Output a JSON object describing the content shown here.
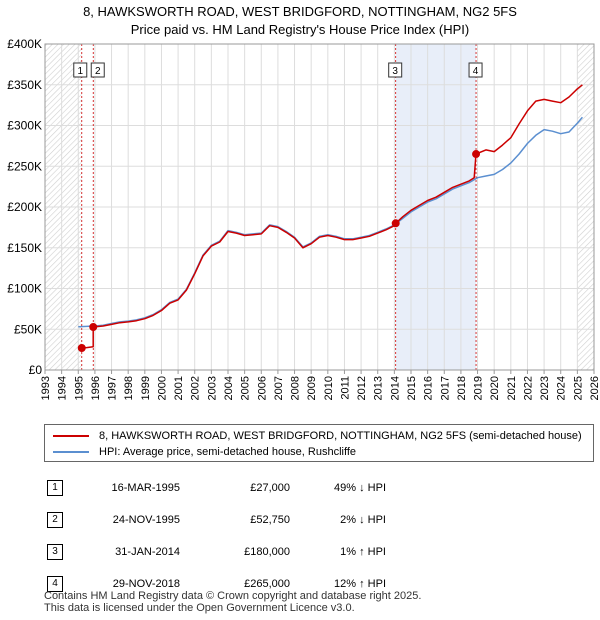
{
  "header": {
    "title_line1": "8, HAWKSWORTH ROAD, WEST BRIDGFORD, NOTTINGHAM, NG2 5FS",
    "title_line2": "Price paid vs. HM Land Registry's House Price Index (HPI)"
  },
  "chart_data": {
    "type": "line",
    "title": "8, HAWKSWORTH ROAD, WEST BRIDGFORD, NOTTINGHAM, NG2 5FS",
    "subtitle": "Price paid vs. HM Land Registry's House Price Index (HPI)",
    "xlabel": "",
    "ylabel": "",
    "xlim": [
      1993,
      2026
    ],
    "ylim": [
      0,
      400000
    ],
    "y_ticks": [
      {
        "value": 0,
        "label": "£0"
      },
      {
        "value": 50000,
        "label": "£50K"
      },
      {
        "value": 100000,
        "label": "£100K"
      },
      {
        "value": 150000,
        "label": "£150K"
      },
      {
        "value": 200000,
        "label": "£200K"
      },
      {
        "value": 250000,
        "label": "£250K"
      },
      {
        "value": 300000,
        "label": "£300K"
      },
      {
        "value": 350000,
        "label": "£350K"
      },
      {
        "value": 400000,
        "label": "£400K"
      }
    ],
    "x_ticks": [
      "1993",
      "1994",
      "1995",
      "1996",
      "1997",
      "1998",
      "1999",
      "2000",
      "2001",
      "2002",
      "2003",
      "2004",
      "2005",
      "2006",
      "2007",
      "2008",
      "2009",
      "2010",
      "2011",
      "2012",
      "2013",
      "2014",
      "2015",
      "2016",
      "2017",
      "2018",
      "2019",
      "2020",
      "2021",
      "2022",
      "2023",
      "2024",
      "2025",
      "2026"
    ],
    "grid": true,
    "hatched_regions": [
      [
        1993,
        1995.2
      ],
      [
        2025.0,
        2026
      ]
    ],
    "shaded_region": [
      2014.08,
      2018.91
    ],
    "series": [
      {
        "name": "8, HAWKSWORTH ROAD, WEST BRIDGFORD, NOTTINGHAM, NG2 5FS (semi-detached house)",
        "color": "#cc0000",
        "x": [
          1995.21,
          1995.5,
          1995.9,
          1995.9,
          1996.5,
          1997.0,
          1997.5,
          1998.0,
          1998.5,
          1999.0,
          1999.5,
          2000.0,
          2000.5,
          2001.0,
          2001.5,
          2002.0,
          2002.5,
          2003.0,
          2003.5,
          2004.0,
          2004.5,
          2005.0,
          2005.5,
          2006.0,
          2006.5,
          2007.0,
          2007.5,
          2008.0,
          2008.5,
          2009.0,
          2009.5,
          2010.0,
          2010.5,
          2011.0,
          2011.5,
          2012.0,
          2012.5,
          2013.0,
          2013.5,
          2014.0,
          2014.08,
          2014.5,
          2015.0,
          2015.5,
          2016.0,
          2016.5,
          2017.0,
          2017.5,
          2018.0,
          2018.5,
          2018.8,
          2018.91,
          2019.5,
          2020.0,
          2020.5,
          2021.0,
          2021.5,
          2022.0,
          2022.5,
          2023.0,
          2023.5,
          2024.0,
          2024.5,
          2025.0,
          2025.3
        ],
        "values": [
          27000,
          27500,
          28500,
          52750,
          54000,
          56000,
          58000,
          59000,
          60500,
          63000,
          67000,
          73000,
          82000,
          86000,
          98000,
          118000,
          140000,
          152000,
          157000,
          170000,
          168000,
          165000,
          166000,
          167000,
          177000,
          175000,
          169000,
          162000,
          150000,
          155000,
          163000,
          165000,
          163000,
          160000,
          160000,
          162000,
          164000,
          168000,
          172000,
          177000,
          180000,
          188000,
          196000,
          202000,
          208000,
          212000,
          218000,
          224000,
          228000,
          232000,
          236000,
          265000,
          270000,
          268000,
          276000,
          285000,
          302000,
          318000,
          330000,
          332000,
          330000,
          328000,
          335000,
          345000,
          350000
        ]
      },
      {
        "name": "HPI: Average price, semi-detached house, Rushcliffe",
        "color": "#5b8fd0",
        "x": [
          1995.0,
          1995.5,
          1996.0,
          1996.5,
          1997.0,
          1997.5,
          1998.0,
          1998.5,
          1999.0,
          1999.5,
          2000.0,
          2000.5,
          2001.0,
          2001.5,
          2002.0,
          2002.5,
          2003.0,
          2003.5,
          2004.0,
          2004.5,
          2005.0,
          2005.5,
          2006.0,
          2006.5,
          2007.0,
          2007.5,
          2008.0,
          2008.5,
          2009.0,
          2009.5,
          2010.0,
          2010.5,
          2011.0,
          2011.5,
          2012.0,
          2012.5,
          2013.0,
          2013.5,
          2014.0,
          2014.5,
          2015.0,
          2015.5,
          2016.0,
          2016.5,
          2017.0,
          2017.5,
          2018.0,
          2018.5,
          2019.0,
          2019.5,
          2020.0,
          2020.5,
          2021.0,
          2021.5,
          2022.0,
          2022.5,
          2023.0,
          2023.5,
          2024.0,
          2024.5,
          2025.0,
          2025.3
        ],
        "values": [
          53000,
          53500,
          54000,
          55000,
          57000,
          59000,
          60000,
          61500,
          64000,
          68000,
          74000,
          83000,
          87000,
          99000,
          119000,
          141000,
          153000,
          158000,
          171000,
          169000,
          166000,
          167000,
          168000,
          178000,
          176000,
          170000,
          163000,
          151000,
          156000,
          164000,
          166000,
          164000,
          161000,
          161000,
          163000,
          165000,
          169000,
          173000,
          178000,
          186000,
          194000,
          200000,
          206000,
          210000,
          216000,
          222000,
          226000,
          230000,
          236000,
          238000,
          240000,
          246000,
          254000,
          265000,
          278000,
          288000,
          295000,
          293000,
          290000,
          292000,
          303000,
          310000
        ]
      }
    ],
    "sales": [
      {
        "num": "1",
        "x": 1995.21,
        "price": 27000
      },
      {
        "num": "2",
        "x": 1995.9,
        "price": 52750
      },
      {
        "num": "3",
        "x": 2014.08,
        "price": 180000
      },
      {
        "num": "4",
        "x": 2018.91,
        "price": 265000
      }
    ]
  },
  "legend": {
    "items": [
      {
        "label": "8, HAWKSWORTH ROAD, WEST BRIDGFORD, NOTTINGHAM, NG2 5FS (semi-detached house)",
        "color": "#cc0000"
      },
      {
        "label": "HPI: Average price, semi-detached house, Rushcliffe",
        "color": "#5b8fd0"
      }
    ]
  },
  "sales_table": [
    {
      "num": "1",
      "date": "16-MAR-1995",
      "price": "£27,000",
      "hpi": "49% ↓ HPI"
    },
    {
      "num": "2",
      "date": "24-NOV-1995",
      "price": "£52,750",
      "hpi": "2% ↓ HPI"
    },
    {
      "num": "3",
      "date": "31-JAN-2014",
      "price": "£180,000",
      "hpi": "1% ↑ HPI"
    },
    {
      "num": "4",
      "date": "29-NOV-2018",
      "price": "£265,000",
      "hpi": "12% ↑ HPI"
    }
  ],
  "footer": {
    "line1": "Contains HM Land Registry data © Crown copyright and database right 2025.",
    "line2": "This data is licensed under the Open Government Licence v3.0."
  }
}
